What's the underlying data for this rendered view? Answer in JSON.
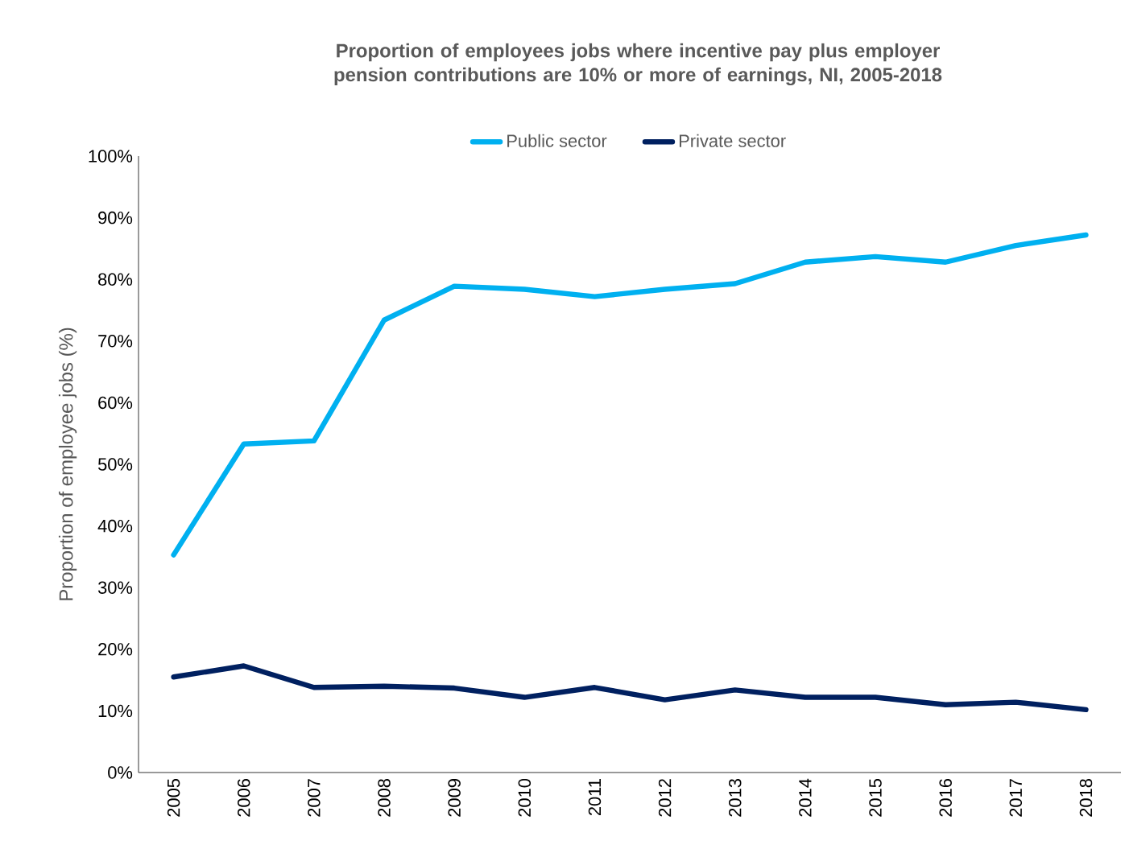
{
  "chart_data": {
    "type": "line",
    "title": "Proportion of employees jobs where incentive pay plus employer pension contributions are 10% or more of earnings, NI, 2005-2018",
    "ylabel": "Proportion of employee jobs (%)",
    "categories": [
      "2005",
      "2006",
      "2007",
      "2008",
      "2009",
      "2010",
      "2011",
      "2012",
      "2013",
      "2014",
      "2015",
      "2016",
      "2017",
      "2018"
    ],
    "series": [
      {
        "name": "Public sector",
        "color": "#00b0f0",
        "values": [
          35.3,
          53.3,
          53.8,
          73.4,
          78.9,
          78.4,
          77.2,
          78.4,
          79.3,
          82.8,
          83.7,
          82.8,
          85.5,
          87.2
        ]
      },
      {
        "name": "Private sector",
        "color": "#002060",
        "values": [
          15.5,
          17.3,
          13.8,
          14.0,
          13.7,
          12.2,
          13.8,
          11.8,
          13.4,
          12.2,
          12.2,
          11.0,
          11.4,
          10.2
        ]
      }
    ],
    "ylim": [
      0,
      100
    ],
    "yticks": [
      {
        "value": 0,
        "label": "0%"
      },
      {
        "value": 10,
        "label": "10%"
      },
      {
        "value": 20,
        "label": "20%"
      },
      {
        "value": 30,
        "label": "30%"
      },
      {
        "value": 40,
        "label": "40%"
      },
      {
        "value": 50,
        "label": "50%"
      },
      {
        "value": 60,
        "label": "60%"
      },
      {
        "value": 70,
        "label": "70%"
      },
      {
        "value": 80,
        "label": "80%"
      },
      {
        "value": 90,
        "label": "90%"
      },
      {
        "value": 100,
        "label": "100%"
      }
    ],
    "legend": "top",
    "grid": false,
    "marker": "none",
    "line_style": "solid"
  }
}
